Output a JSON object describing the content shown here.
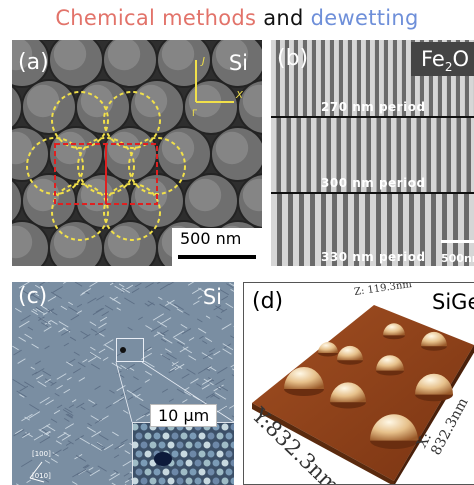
{
  "title": {
    "part1": "Chemical methods",
    "part2": "and",
    "part3": "dewetting",
    "colors": {
      "part1": "#e2736a",
      "part2": "#111111",
      "part3": "#6e8fd9"
    }
  },
  "panel_a": {
    "label": "(a)",
    "material": "Si",
    "axis_y": "J",
    "axis_x": "X",
    "axis_origin": "Γ",
    "scalebar": "500 nm"
  },
  "panel_b": {
    "label": "(b)",
    "material_base": "Fe",
    "material_sub": "2",
    "material_end": "O",
    "periods": [
      "270 nm period",
      "300 nm period",
      "330 nm period"
    ],
    "scalebar": "500nm"
  },
  "panel_c": {
    "label": "(c)",
    "material": "Si",
    "inset_scalebar": "10 μm",
    "orientation": [
      "[100]",
      "[010]"
    ]
  },
  "panel_d": {
    "label": "(d)",
    "material": "SiGe",
    "z_axis": "Z: 119.3nm",
    "y_axis": "Y:832.3nm",
    "x_axis": "X: 832.3nm"
  }
}
